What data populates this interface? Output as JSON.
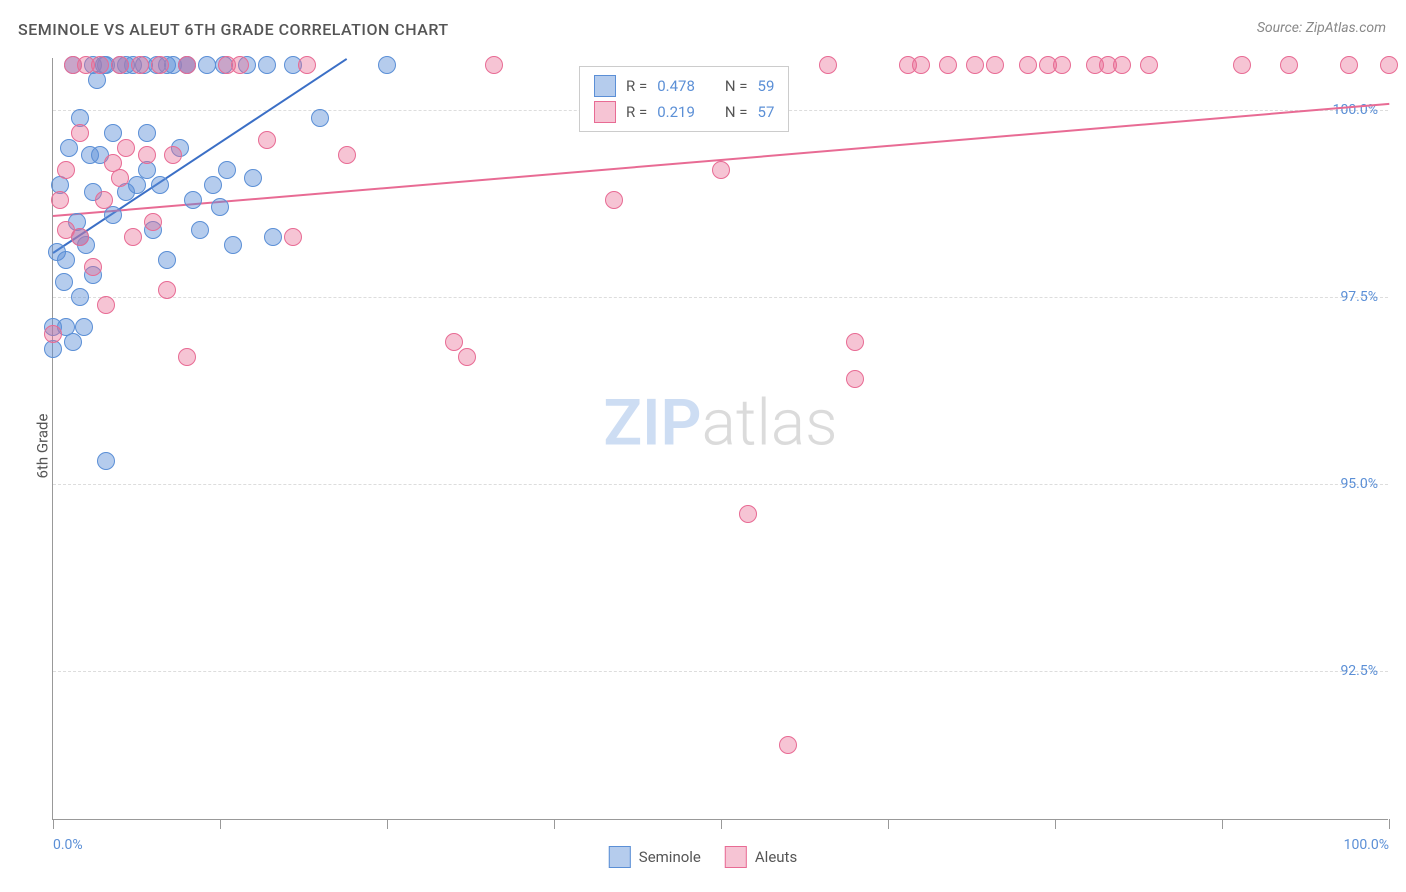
{
  "title": "SEMINOLE VS ALEUT 6TH GRADE CORRELATION CHART",
  "source": "Source: ZipAtlas.com",
  "y_axis_label": "6th Grade",
  "chart": {
    "type": "scatter",
    "background_color": "#ffffff",
    "grid_color": "#dddddd",
    "axis_color": "#999999",
    "tick_label_color": "#5b8fd6",
    "xlim": [
      0,
      100
    ],
    "ylim": [
      90.5,
      100.7
    ],
    "x_ticks": [
      0,
      12.5,
      25,
      37.5,
      50,
      62.5,
      75,
      87.5,
      100
    ],
    "x_tick_labels": {
      "0": "0.0%",
      "100": "100.0%"
    },
    "y_ticks": [
      92.5,
      95.0,
      97.5,
      100.0
    ],
    "y_tick_labels": [
      "92.5%",
      "95.0%",
      "97.5%",
      "100.0%"
    ],
    "point_radius": 9,
    "series": [
      {
        "name": "Seminole",
        "label": "Seminole",
        "color_fill": "rgba(91,143,214,0.45)",
        "color_stroke": "#5b8fd6",
        "R": "0.478",
        "N": "59",
        "trend": {
          "x1": 0,
          "y1": 98.1,
          "x2": 22,
          "y2": 100.7,
          "color": "#3b6fc6"
        },
        "points": [
          [
            0,
            96.8
          ],
          [
            0,
            97.1
          ],
          [
            0.3,
            98.1
          ],
          [
            0.5,
            99.0
          ],
          [
            0.8,
            97.7
          ],
          [
            1,
            97.1
          ],
          [
            1,
            98.0
          ],
          [
            1.2,
            99.5
          ],
          [
            1.5,
            96.9
          ],
          [
            1.5,
            100.6
          ],
          [
            1.8,
            98.5
          ],
          [
            2,
            98.3
          ],
          [
            2,
            99.9
          ],
          [
            2,
            97.5
          ],
          [
            2.3,
            97.1
          ],
          [
            2.5,
            98.2
          ],
          [
            2.8,
            99.4
          ],
          [
            3,
            100.6
          ],
          [
            3,
            97.8
          ],
          [
            3,
            98.9
          ],
          [
            3.3,
            100.4
          ],
          [
            3.5,
            99.4
          ],
          [
            3.8,
            100.6
          ],
          [
            4,
            95.3
          ],
          [
            4,
            100.6
          ],
          [
            4.5,
            99.7
          ],
          [
            4.5,
            98.6
          ],
          [
            5,
            100.6
          ],
          [
            5.5,
            98.9
          ],
          [
            5.5,
            100.6
          ],
          [
            6,
            100.6
          ],
          [
            6.3,
            99.0
          ],
          [
            6.8,
            100.6
          ],
          [
            7,
            99.7
          ],
          [
            7,
            99.2
          ],
          [
            7.5,
            98.4
          ],
          [
            7.8,
            100.6
          ],
          [
            8,
            99.0
          ],
          [
            8.5,
            100.6
          ],
          [
            8.5,
            98.0
          ],
          [
            9,
            100.6
          ],
          [
            9.5,
            99.5
          ],
          [
            10,
            100.6
          ],
          [
            10,
            100.6
          ],
          [
            10.5,
            98.8
          ],
          [
            11,
            98.4
          ],
          [
            11.5,
            100.6
          ],
          [
            12,
            99.0
          ],
          [
            12.5,
            98.7
          ],
          [
            12.8,
            100.6
          ],
          [
            13,
            99.2
          ],
          [
            13.5,
            98.2
          ],
          [
            14.5,
            100.6
          ],
          [
            15,
            99.1
          ],
          [
            16,
            100.6
          ],
          [
            16.5,
            98.3
          ],
          [
            18,
            100.6
          ],
          [
            20,
            99.9
          ],
          [
            25,
            100.6
          ]
        ]
      },
      {
        "name": "Aleuts",
        "label": "Aleuts",
        "color_fill": "rgba(232,107,148,0.40)",
        "color_stroke": "#e86b94",
        "R": "0.219",
        "N": "57",
        "trend": {
          "x1": 0,
          "y1": 98.6,
          "x2": 100,
          "y2": 100.1,
          "color": "#e86b94"
        },
        "points": [
          [
            0,
            97.0
          ],
          [
            0.5,
            98.8
          ],
          [
            1,
            99.2
          ],
          [
            1,
            98.4
          ],
          [
            1.5,
            100.6
          ],
          [
            2,
            98.3
          ],
          [
            2,
            99.7
          ],
          [
            2.5,
            100.6
          ],
          [
            3,
            97.9
          ],
          [
            3.5,
            100.6
          ],
          [
            3.8,
            98.8
          ],
          [
            4,
            97.4
          ],
          [
            4.5,
            99.3
          ],
          [
            5,
            99.1
          ],
          [
            5,
            100.6
          ],
          [
            5.5,
            99.5
          ],
          [
            6,
            98.3
          ],
          [
            6.5,
            100.6
          ],
          [
            7,
            99.4
          ],
          [
            7.5,
            98.5
          ],
          [
            8,
            100.6
          ],
          [
            8.5,
            97.6
          ],
          [
            9,
            99.4
          ],
          [
            10,
            100.6
          ],
          [
            10,
            96.7
          ],
          [
            13,
            100.6
          ],
          [
            14,
            100.6
          ],
          [
            16,
            99.6
          ],
          [
            18,
            98.3
          ],
          [
            19,
            100.6
          ],
          [
            22,
            99.4
          ],
          [
            30,
            96.9
          ],
          [
            31,
            96.7
          ],
          [
            33,
            100.6
          ],
          [
            42,
            98.8
          ],
          [
            50,
            99.2
          ],
          [
            52,
            94.6
          ],
          [
            55,
            91.5
          ],
          [
            58,
            100.6
          ],
          [
            60,
            96.9
          ],
          [
            60,
            96.4
          ],
          [
            64,
            100.6
          ],
          [
            65,
            100.6
          ],
          [
            67,
            100.6
          ],
          [
            69,
            100.6
          ],
          [
            70.5,
            100.6
          ],
          [
            73,
            100.6
          ],
          [
            74.5,
            100.6
          ],
          [
            75.5,
            100.6
          ],
          [
            78,
            100.6
          ],
          [
            79,
            100.6
          ],
          [
            80,
            100.6
          ],
          [
            82,
            100.6
          ],
          [
            89,
            100.6
          ],
          [
            92.5,
            100.6
          ],
          [
            97,
            100.6
          ],
          [
            100,
            100.6
          ]
        ]
      }
    ]
  },
  "watermark": {
    "text_bold": "ZIP",
    "text_light": "atlas",
    "color_bold": "rgba(91,143,214,0.30)",
    "color_light": "rgba(136,136,136,0.30)"
  },
  "legend_box": {
    "r_label": "R =",
    "n_label": "N ="
  }
}
